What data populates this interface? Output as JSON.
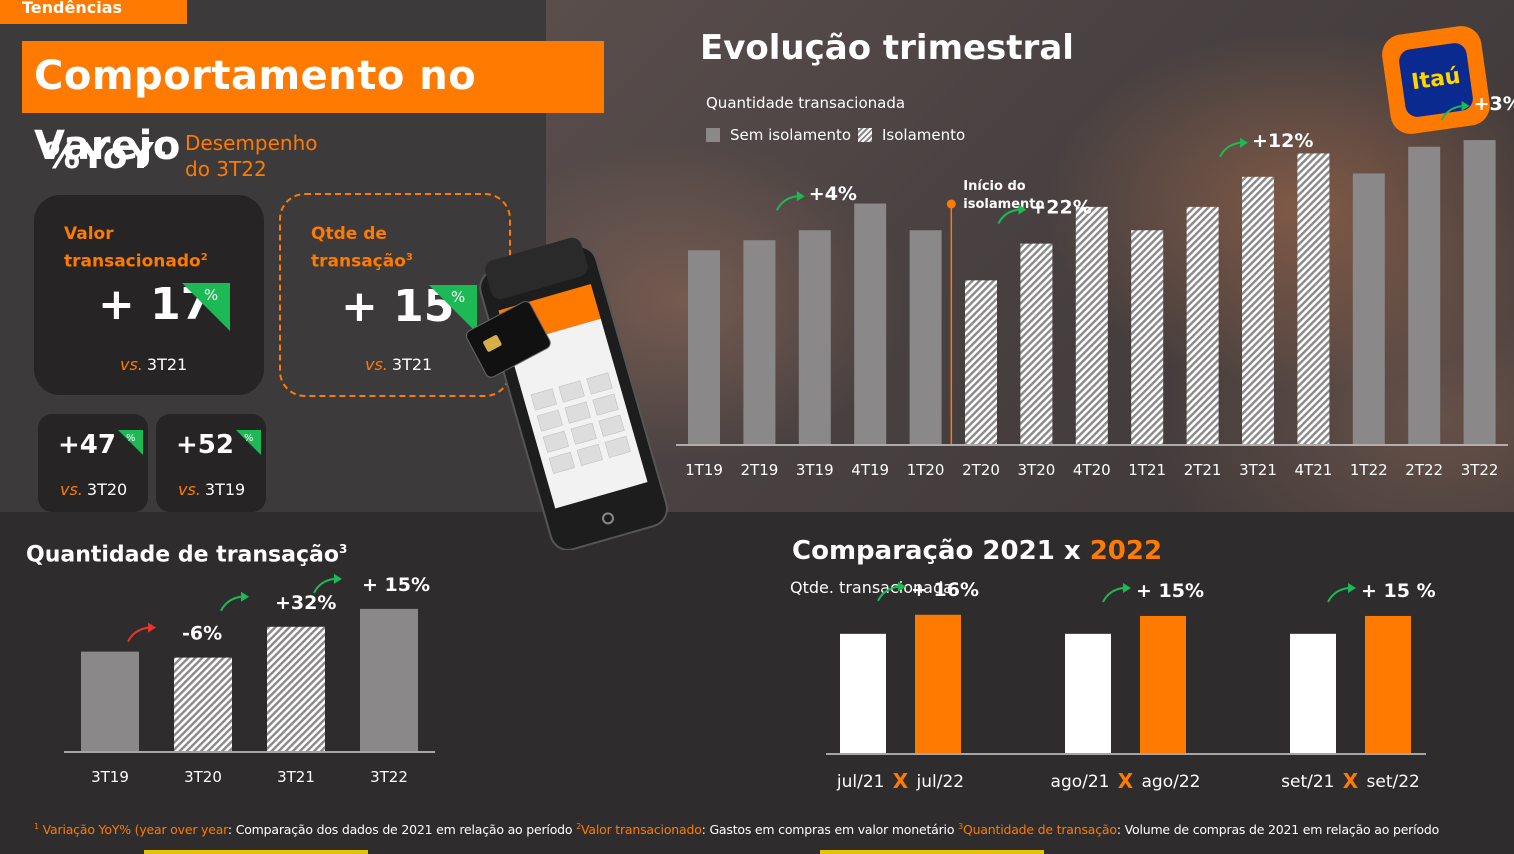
{
  "header": {
    "tab": "Tendências",
    "title": "Comportamento no Varejo",
    "yoy_label": "%YoY",
    "yoy_sup": "1",
    "performance_label": "Desempenho do 3T22"
  },
  "kpis": {
    "valor": {
      "label_line1": "Valor",
      "label_line2": "transacionado",
      "label_sup": "2",
      "value": "+ 17",
      "unit": "%",
      "vs_prefix": "vs.",
      "vs_period": "3T21"
    },
    "qtde": {
      "label_line1": "Qtde de",
      "label_line2": "transação",
      "label_sup": "3",
      "value": "+ 15",
      "unit": "%",
      "vs_prefix": "vs.",
      "vs_period": "3T21"
    },
    "small": [
      {
        "value": "+47",
        "unit": "%",
        "vs_prefix": "vs.",
        "vs_period": "3T20"
      },
      {
        "value": "+52",
        "unit": "%",
        "vs_prefix": "vs.",
        "vs_period": "3T19"
      }
    ]
  },
  "logo": {
    "text": "Itaú"
  },
  "colors": {
    "accent": "#ff7a00",
    "gray_bar": "#8a8889",
    "positive": "#1db954",
    "negative": "#e8342f"
  },
  "chart_data": [
    {
      "type": "bar",
      "title": "Evolução trimestral",
      "subtitle": "Quantidade transacionada",
      "legend": [
        "Sem isolamento",
        "Isolamento"
      ],
      "legend_placement": "top-left",
      "categories": [
        "1T19",
        "2T19",
        "3T19",
        "4T19",
        "1T20",
        "2T20",
        "3T20",
        "4T20",
        "1T21",
        "2T21",
        "3T21",
        "4T21",
        "1T22",
        "2T22",
        "3T22"
      ],
      "values": [
        58,
        61,
        64,
        72,
        64,
        49,
        60,
        71,
        64,
        71,
        80,
        87,
        81,
        89,
        91
      ],
      "isolamento": [
        false,
        false,
        false,
        false,
        false,
        true,
        true,
        true,
        true,
        true,
        true,
        true,
        false,
        false,
        false
      ],
      "ylim": [
        0,
        100
      ],
      "marker_label": [
        "Início do",
        "isolamento"
      ],
      "annotations": [
        {
          "label": "+4%",
          "after_index": 2
        },
        {
          "label": "+22%",
          "after_index": 6
        },
        {
          "label": "+12%",
          "after_index": 10
        },
        {
          "label": "+3%",
          "after_index": 14
        }
      ]
    },
    {
      "type": "bar",
      "title": "Quantidade de transação",
      "title_sup": "3",
      "categories": [
        "3T19",
        "3T20",
        "3T21",
        "3T22"
      ],
      "values": [
        100,
        94,
        125,
        143
      ],
      "isolamento": [
        false,
        true,
        true,
        false
      ],
      "ylim": [
        0,
        160
      ],
      "annotations": [
        {
          "label": "-6%",
          "index": 1,
          "direction": "down"
        },
        {
          "label": "+32%",
          "index": 2,
          "direction": "up"
        },
        {
          "label": "+ 15%",
          "index": 3,
          "direction": "up"
        }
      ]
    },
    {
      "type": "bar",
      "title_part1": "Comparação 2021 x",
      "title_part2": "2022",
      "subtitle": "Qtde. transacionada",
      "groups": [
        {
          "label_a": "jul/21",
          "sep": "X",
          "label_b": "jul/22",
          "value_a": 100,
          "value_b": 116,
          "change": "+ 16%"
        },
        {
          "label_a": "ago/21",
          "sep": "X",
          "label_b": "ago/22",
          "value_a": 100,
          "value_b": 115,
          "change": "+ 15%"
        },
        {
          "label_a": "set/21",
          "sep": "X",
          "label_b": "set/22",
          "value_a": 100,
          "value_b": 115,
          "change": "+ 15 %"
        }
      ],
      "ylim": [
        0,
        120
      ]
    }
  ],
  "footnote": {
    "n1": "1",
    "t1": "Variação YoY% (year over year",
    "d1": ": Comparação dos dados de 2021 em relação ao período",
    "n2": "2",
    "t2": "Valor transacionado",
    "d2": ": Gastos em compras em valor monetário",
    "n3": "3",
    "t3": "Quantidade de transação",
    "d3": ": Volume de compras de 2021 em relação ao período"
  }
}
